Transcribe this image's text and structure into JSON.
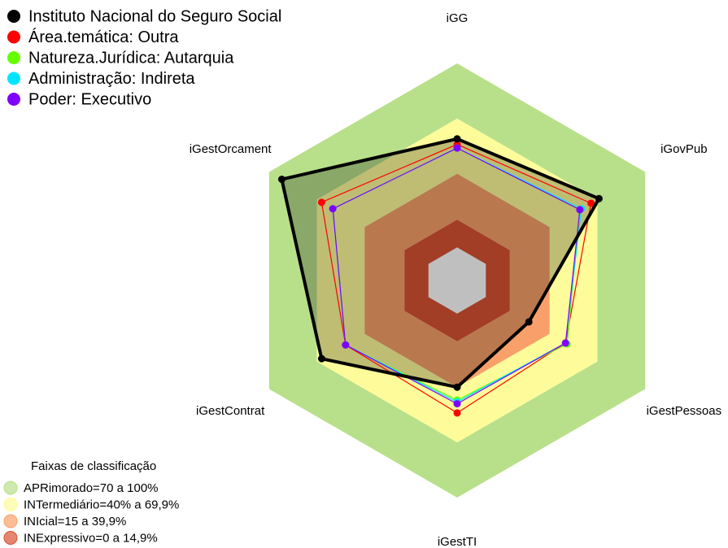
{
  "chart_data": {
    "type": "radar",
    "axes": [
      "iGG",
      "iGovPub",
      "iGestPessoas",
      "iGestTI",
      "iGestContrat",
      "iGestOrcament"
    ],
    "rlim": [
      -18,
      100
    ],
    "series": [
      {
        "name": "Instituto Nacional do Seguro Social",
        "color": "#000000",
        "values": [
          59,
          71,
          27,
          40,
          67,
          92
        ]
      },
      {
        "name": "Área.temática: Outra",
        "color": "#ff0000",
        "values": [
          56,
          66,
          50,
          54,
          52,
          67
        ]
      },
      {
        "name": "Natureza.Jurídica: Autarquia",
        "color": "#66ff00",
        "values": [
          54,
          59,
          51,
          47,
          52,
          60
        ]
      },
      {
        "name": "Administração: Indireta",
        "color": "#00e5ff",
        "values": [
          54,
          60,
          50,
          48,
          52,
          60
        ]
      },
      {
        "name": "Poder: Executivo",
        "color": "#7f00ff",
        "values": [
          54,
          59,
          50,
          49,
          52,
          60
        ]
      }
    ],
    "legend_title": "Faixas de classificação",
    "bands": [
      {
        "name": "APRimorado=70 a 100%",
        "from": 70,
        "to": 100,
        "color": "#b8e08a"
      },
      {
        "name": "INTermediário=40% a 69,9%",
        "from": 40,
        "to": 70,
        "color": "#fefc9a"
      },
      {
        "name": "INIcial=15 a 39,9%",
        "from": 15,
        "to": 40,
        "color": "#f9a06a"
      },
      {
        "name": "INExpressivo=0 a 14,9%",
        "from": 0,
        "to": 15,
        "color": "#d85233"
      }
    ]
  }
}
